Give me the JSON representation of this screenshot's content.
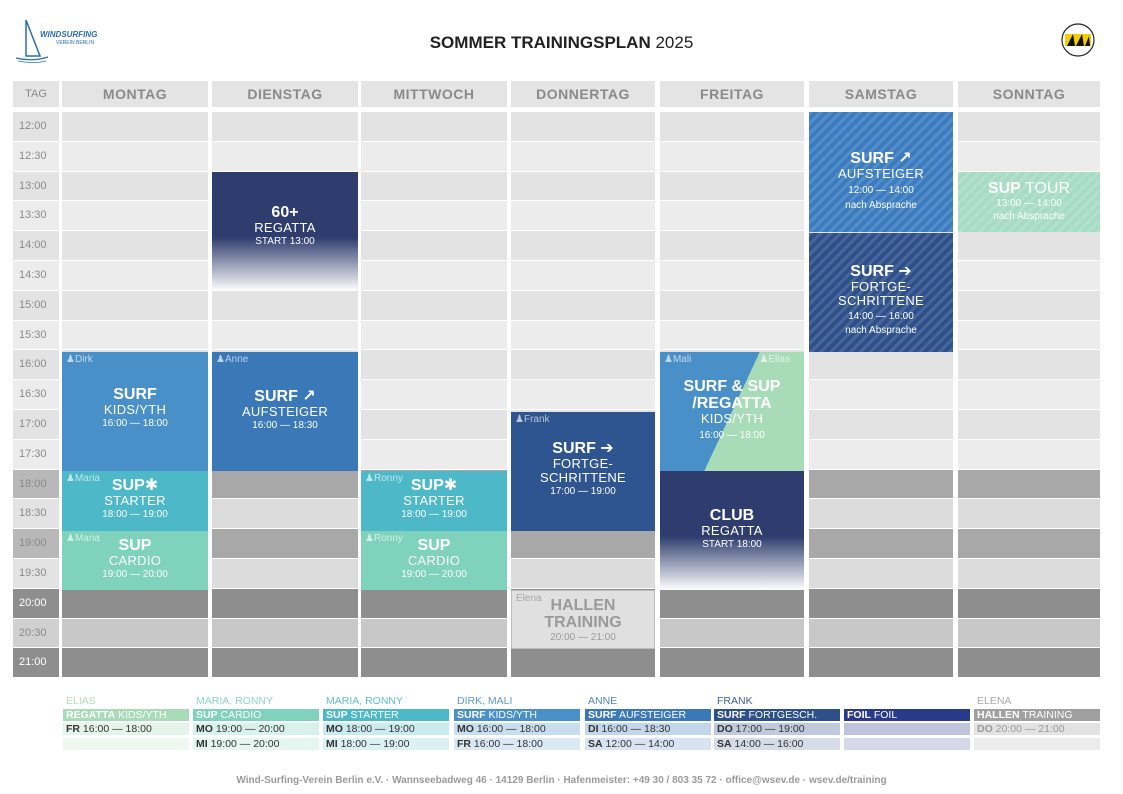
{
  "header": {
    "logo_line1": "WINDSURFING",
    "logo_line2": "VEREIN BERLIN",
    "title_bold": "SOMMER TRAININGSPLAN",
    "title_year": "2025"
  },
  "grid": {
    "tag_label": "TAG",
    "days": [
      "MONTAG",
      "DIENSTAG",
      "MITTWOCH",
      "DONNERTAG",
      "FREITAG",
      "SAMSTAG",
      "SONNTAG"
    ],
    "times": [
      "12:00",
      "12:30",
      "13:00",
      "13:30",
      "14:00",
      "14:30",
      "15:00",
      "15:30",
      "16:00",
      "16:30",
      "17:00",
      "17:30",
      "18:00",
      "18:30",
      "19:00",
      "19:30",
      "20:00",
      "20:30",
      "21:00"
    ]
  },
  "events": {
    "sa_surf_aufsteiger": {
      "t1": "SURF ↗",
      "t2": "AUFSTEIGER",
      "t3": "12:00 — 14:00",
      "t4": "nach Absprache"
    },
    "so_sup_tour": {
      "t1a": "SUP",
      "t1b": "TOUR",
      "t3": "13:00 — 14:00",
      "t4": "nach Absprache"
    },
    "di_60_regatta": {
      "t1": "60+",
      "t2": "REGATTA",
      "t3": "START 13:00"
    },
    "sa_surf_fortge": {
      "t1": "SURF ➔",
      "t2a": "FORTGE-",
      "t2b": "SCHRITTENE",
      "t3": "14:00 — 16:00",
      "t4": "nach Absprache"
    },
    "mo_surf_kids": {
      "trainer": "Dirk",
      "t1": "SURF",
      "t2": "KIDS/YTH",
      "t3": "16:00 — 18:00"
    },
    "di_surf_aufsteiger": {
      "trainer": "Anne",
      "t1": "SURF ↗",
      "t2": "AUFSTEIGER",
      "t3": "16:00 — 18:30"
    },
    "fr_surf_sup_regatta": {
      "trainer": "Mali",
      "trainer2": "Elias",
      "t1a": "SURF & SUP",
      "t1b": "/REGATTA",
      "t2": "KIDS/YTH",
      "t3": "16:00 — 18:00"
    },
    "do_surf_fortge": {
      "trainer": "Frank",
      "t1": "SURF ➔",
      "t2a": "FORTGE-",
      "t2b": "SCHRITTENE",
      "t3": "17:00 — 19:00"
    },
    "mo_sup_starter": {
      "trainer": "Maria",
      "t1": "SUP✱",
      "t2": "STARTER",
      "t3": "18:00 — 19:00"
    },
    "mi_sup_starter": {
      "trainer": "Ronny",
      "t1": "SUP✱",
      "t2": "STARTER",
      "t3": "18:00 — 19:00"
    },
    "fr_club_regatta": {
      "t1": "CLUB",
      "t2": "REGATTA",
      "t3": "START 18:00"
    },
    "mo_sup_cardio": {
      "trainer": "Maria",
      "t1": "SUP",
      "t2": "CARDIO",
      "t3": "19:00 — 20:00"
    },
    "mi_sup_cardio": {
      "trainer": "Ronny",
      "t1": "SUP",
      "t2": "CARDIO",
      "t3": "19:00 — 20:00"
    },
    "do_hallen": {
      "trainer": "Elena",
      "t1a": "HALLEN",
      "t1b": "TRAINING",
      "t3": "20:00 — 21:00"
    }
  },
  "legend": [
    {
      "trainer": "ELIAS",
      "name_a": "REGATTA",
      "name_b": "KIDS/YTH",
      "r1a": "FR",
      "r1b": "16:00 — 18:00",
      "r2a": "",
      "r2b": "",
      "color": "#a8dcb8"
    },
    {
      "trainer": "MARIA, RONNY",
      "name_a": "SUP",
      "name_b": "CARDIO",
      "r1a": "MO",
      "r1b": "19:00 — 20:00",
      "r2a": "MI",
      "r2b": "19:00 — 20:00",
      "color": "#7fd2bb"
    },
    {
      "trainer": "MARIA, RONNY",
      "name_a": "SUP",
      "name_b": "STARTER",
      "r1a": "MO",
      "r1b": "18:00 — 19:00",
      "r2a": "MI",
      "r2b": "18:00 — 19:00",
      "color": "#4db8c8"
    },
    {
      "trainer": "DIRK, MALI",
      "name_a": "SURF",
      "name_b": "KIDS/YTH",
      "r1a": "MO",
      "r1b": "16:00 — 18:00",
      "r2a": "FR",
      "r2b": "16:00 — 18:00",
      "color": "#4a90c8"
    },
    {
      "trainer": "ANNE",
      "name_a": "SURF",
      "name_b": "AUFSTEIGER",
      "r1a": "DI",
      "r1b": "16:00 — 18:30",
      "r2a": "SA",
      "r2b": "12:00 — 14:00",
      "color": "#3a78b8"
    },
    {
      "trainer": "FRANK",
      "name_a": "SURF",
      "name_b": "FORTGESCH.",
      "r1a": "DO",
      "r1b": "17:00 — 19:00",
      "r2a": "SA",
      "r2b": "14:00 — 16:00",
      "color": "#2d4f8a"
    },
    {
      "trainer": "",
      "name_a": "FOIL",
      "name_b": "FOIL",
      "r1a": "",
      "r1b": "",
      "r2a": "",
      "r2b": "",
      "color": "#2a3a8a"
    },
    {
      "trainer": "ELENA",
      "name_a": "HALLEN",
      "name_b": "TRAINING",
      "r1a": "DO",
      "r1b": "20:00 — 21:00",
      "r2a": "",
      "r2b": "",
      "color": "#a0a0a0"
    }
  ],
  "footer": "Wind-Surfing-Verein Berlin e.V. · Wannseebadweg 46 · 14129 Berlin · Hafenmeister: +49 30 / 803 35 72 · office@wsev.de · wsev.de/training"
}
